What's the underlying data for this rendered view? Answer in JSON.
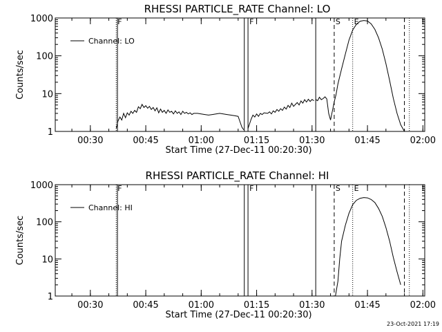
{
  "footer": {
    "timestamp": "23-Oct-2021 17:19"
  },
  "chart_data": [
    {
      "type": "line",
      "title": "RHESSI PARTICLE_RATE Channel: LO",
      "xlabel": "Start Time (27-Dec-11 00:20:30)",
      "ylabel": "Counts/sec",
      "y_scale": "log",
      "ylim": [
        1,
        1000
      ],
      "xlim": [
        "00:20:30",
        "02:00:30"
      ],
      "x_ticks": [
        "00:30",
        "00:45",
        "01:00",
        "01:15",
        "01:30",
        "01:45",
        "02:00"
      ],
      "y_ticks": [
        "1",
        "10",
        "100",
        "1000"
      ],
      "legend": {
        "position": "top-left",
        "entries": [
          "Channel: LO"
        ]
      },
      "markers": [
        {
          "time": "00:37:00",
          "style": "dotted",
          "label": "F"
        },
        {
          "time": "00:37:20",
          "style": "solid",
          "label": ""
        },
        {
          "time": "01:11:40",
          "style": "solid",
          "label": ""
        },
        {
          "time": "01:12:40",
          "style": "solid",
          "label": "F"
        },
        {
          "time": "01:31:00",
          "style": "solid",
          "label": ""
        },
        {
          "time": "01:36:00",
          "style": "dashed",
          "label": "S"
        },
        {
          "time": "01:41:00",
          "style": "dotted",
          "label": "E"
        },
        {
          "time": "01:55:00",
          "style": "dashed",
          "label": ""
        },
        {
          "time": "01:56:20",
          "style": "dotted",
          "label": ""
        }
      ],
      "series": [
        {
          "name": "Channel: LO",
          "segments": [
            {
              "x": [
                "00:37:00",
                "00:37:30",
                "00:38:00",
                "00:38:30",
                "00:39:00",
                "00:39:30",
                "00:40:00",
                "00:40:30",
                "00:41:00",
                "00:41:30",
                "00:42:00",
                "00:42:30",
                "00:43:00",
                "00:43:30",
                "00:44:00",
                "00:44:30",
                "00:45:00",
                "00:45:30",
                "00:46:00",
                "00:46:30",
                "00:47:00",
                "00:47:30",
                "00:48:00",
                "00:48:30",
                "00:49:00",
                "00:49:30",
                "00:50:00",
                "00:50:30",
                "00:51:00",
                "00:51:30",
                "00:52:00",
                "00:52:30",
                "00:53:00",
                "00:53:30",
                "00:54:00",
                "00:54:30",
                "00:55:00",
                "00:55:30",
                "00:56:00",
                "00:56:30",
                "00:57:00",
                "00:57:30",
                "00:58:00",
                "00:59:00",
                "01:00:00",
                "01:01:00",
                "01:02:00",
                "01:03:00",
                "01:04:00",
                "01:05:00",
                "01:06:00",
                "01:07:00",
                "01:08:00",
                "01:09:00",
                "01:10:00",
                "01:10:30",
                "01:11:00",
                "01:11:30"
              ],
              "y": [
                1.2,
                1.9,
                2.4,
                2.0,
                3.0,
                2.3,
                3.1,
                2.7,
                3.4,
                3.0,
                3.6,
                3.2,
                4.5,
                4.0,
                5.2,
                4.3,
                4.8,
                4.1,
                4.6,
                3.8,
                4.3,
                3.5,
                4.2,
                3.1,
                3.9,
                3.2,
                3.6,
                3.0,
                3.7,
                3.2,
                3.4,
                2.9,
                3.5,
                3.0,
                3.3,
                2.8,
                3.4,
                3.0,
                3.2,
                2.9,
                3.1,
                2.8,
                3.0,
                3.0,
                2.9,
                2.8,
                2.7,
                2.8,
                2.9,
                3.0,
                2.9,
                2.8,
                2.7,
                2.6,
                2.5,
                1.8,
                1.3,
                1.1
              ]
            },
            {
              "x": [
                "01:12:40",
                "01:13:30",
                "01:14:00",
                "01:14:30",
                "01:15:00",
                "01:15:30",
                "01:16:00",
                "01:16:30",
                "01:17:00",
                "01:18:00",
                "01:18:30",
                "01:19:00",
                "01:19:30",
                "01:20:00",
                "01:20:30",
                "01:21:00",
                "01:21:30",
                "01:22:00",
                "01:22:30",
                "01:23:00",
                "01:23:30",
                "01:24:00",
                "01:24:30",
                "01:25:00",
                "01:25:30",
                "01:26:00",
                "01:26:30",
                "01:27:00",
                "01:27:30",
                "01:28:00",
                "01:28:30",
                "01:29:00",
                "01:29:30",
                "01:30:00",
                "01:30:30"
              ],
              "y": [
                1.2,
                2.1,
                2.7,
                2.4,
                2.9,
                2.5,
                3.0,
                2.8,
                3.1,
                3.0,
                3.3,
                2.9,
                3.5,
                3.2,
                3.8,
                3.4,
                4.0,
                3.6,
                4.4,
                3.9,
                4.9,
                4.3,
                5.6,
                4.6,
                5.2,
                5.8,
                5.0,
                6.4,
                5.6,
                6.9,
                6.0,
                7.1,
                6.2,
                7.0,
                6.5
              ]
            },
            {
              "x": [
                "01:31:00",
                "01:31:30",
                "01:32:00",
                "01:32:30",
                "01:33:00",
                "01:33:30",
                "01:34:00",
                "01:34:30",
                "01:35:00",
                "01:35:30",
                "01:36:00",
                "01:36:30",
                "01:37:00",
                "01:38:00",
                "01:39:00",
                "01:40:00",
                "01:41:00",
                "01:42:00",
                "01:43:00",
                "01:44:00",
                "01:45:00",
                "01:46:00",
                "01:47:00",
                "01:48:00",
                "01:49:00",
                "01:50:00",
                "01:51:00",
                "01:52:00",
                "01:53:00",
                "01:54:00",
                "01:55:00"
              ],
              "y": [
                7.0,
                6.5,
                8.0,
                6.9,
                7.4,
                8.2,
                7.2,
                3.0,
                2.0,
                3.5,
                6.0,
                9.5,
                18,
                45,
                110,
                260,
                480,
                680,
                820,
                860,
                830,
                700,
                500,
                300,
                150,
                62,
                22,
                7.5,
                3.0,
                1.5,
                1.0
              ]
            }
          ]
        }
      ]
    },
    {
      "type": "line",
      "title": "RHESSI PARTICLE_RATE Channel: HI",
      "xlabel": "Start Time (27-Dec-11 00:20:30)",
      "ylabel": "Counts/sec",
      "y_scale": "log",
      "ylim": [
        1,
        1000
      ],
      "xlim": [
        "00:20:30",
        "02:00:30"
      ],
      "x_ticks": [
        "00:30",
        "00:45",
        "01:00",
        "01:15",
        "01:30",
        "01:45",
        "02:00"
      ],
      "y_ticks": [
        "1",
        "10",
        "100",
        "1000"
      ],
      "legend": {
        "position": "top-left",
        "entries": [
          "Channel: HI"
        ]
      },
      "markers": [
        {
          "time": "00:37:00",
          "style": "dotted",
          "label": "F"
        },
        {
          "time": "00:37:20",
          "style": "solid",
          "label": ""
        },
        {
          "time": "01:11:40",
          "style": "solid",
          "label": ""
        },
        {
          "time": "01:12:40",
          "style": "solid",
          "label": "F"
        },
        {
          "time": "01:31:00",
          "style": "solid",
          "label": ""
        },
        {
          "time": "01:36:00",
          "style": "dashed",
          "label": "S"
        },
        {
          "time": "01:41:00",
          "style": "dotted",
          "label": "E"
        },
        {
          "time": "01:55:00",
          "style": "dashed",
          "label": ""
        },
        {
          "time": "01:56:20",
          "style": "dotted",
          "label": ""
        }
      ],
      "series": [
        {
          "name": "Channel: HI",
          "segments": [
            {
              "x": [
                "01:36:20",
                "01:37:00",
                "01:37:30",
                "01:38:00",
                "01:39:00",
                "01:40:00",
                "01:41:00",
                "01:42:00",
                "01:43:00",
                "01:44:00",
                "01:45:00",
                "01:46:00",
                "01:47:00",
                "01:48:00",
                "01:49:00",
                "01:50:00",
                "01:51:00",
                "01:52:00",
                "01:53:00",
                "01:54:00"
              ],
              "y": [
                1.0,
                2.5,
                10,
                30,
                80,
                170,
                290,
                380,
                430,
                450,
                440,
                400,
                330,
                230,
                140,
                70,
                30,
                11,
                4.5,
                2.0
              ]
            }
          ]
        }
      ]
    }
  ]
}
